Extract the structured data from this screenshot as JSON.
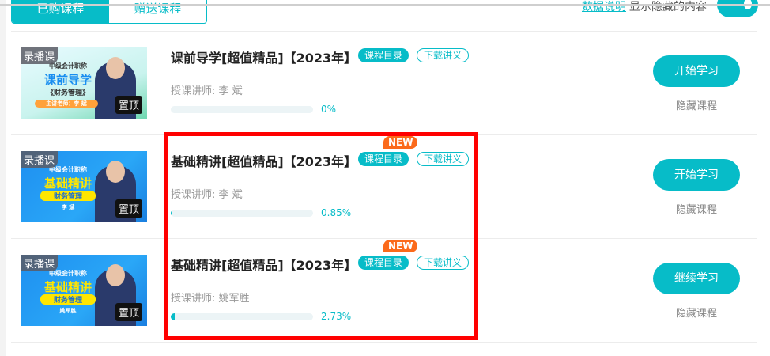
{
  "tabs": [
    {
      "label": "已购课程",
      "active": true
    },
    {
      "label": "赠送课程",
      "active": false
    }
  ],
  "top_links": {
    "data_note": "数据说明",
    "show_hidden": "显示隐藏的内容",
    "toggle_on": true
  },
  "accent": "#07bcc8",
  "courses": [
    {
      "thumb_tag": "录播课",
      "thumb_pin": "置顶",
      "thumb_lines": [
        "中级会计职称",
        "课前导学",
        "《财务管理》",
        "主讲老师：李 斌"
      ],
      "title": "课前导学[超值精品]【2023年】",
      "new": "",
      "catalog": "课程目录",
      "download": "下载讲义",
      "teacher": "授课讲师:  李   斌",
      "progress": 0,
      "progress_text": "0%",
      "action": "开始学习",
      "hide": "隐藏课程"
    },
    {
      "thumb_tag": "录播课",
      "thumb_pin": "置顶",
      "thumb_lines": [
        "中级会计职称",
        "基础精讲",
        "财务管理",
        "李 斌"
      ],
      "title": "基础精讲[超值精品]【2023年】",
      "new": "NEW",
      "catalog": "课程目录",
      "download": "下载讲义",
      "teacher": "授课讲师:  李   斌",
      "progress": 0.85,
      "progress_text": "0.85%",
      "action": "开始学习",
      "hide": "隐藏课程"
    },
    {
      "thumb_tag": "录播课",
      "thumb_pin": "置顶",
      "thumb_lines": [
        "中级会计职称",
        "基础精讲",
        "财务管理",
        "姚军胜"
      ],
      "title": "基础精讲[超值精品]【2023年】",
      "new": "NEW",
      "catalog": "课程目录",
      "download": "下载讲义",
      "teacher": "授课讲师:  姚军胜",
      "progress": 2.73,
      "progress_text": "2.73%",
      "action": "继续学习",
      "hide": "隐藏课程"
    }
  ]
}
